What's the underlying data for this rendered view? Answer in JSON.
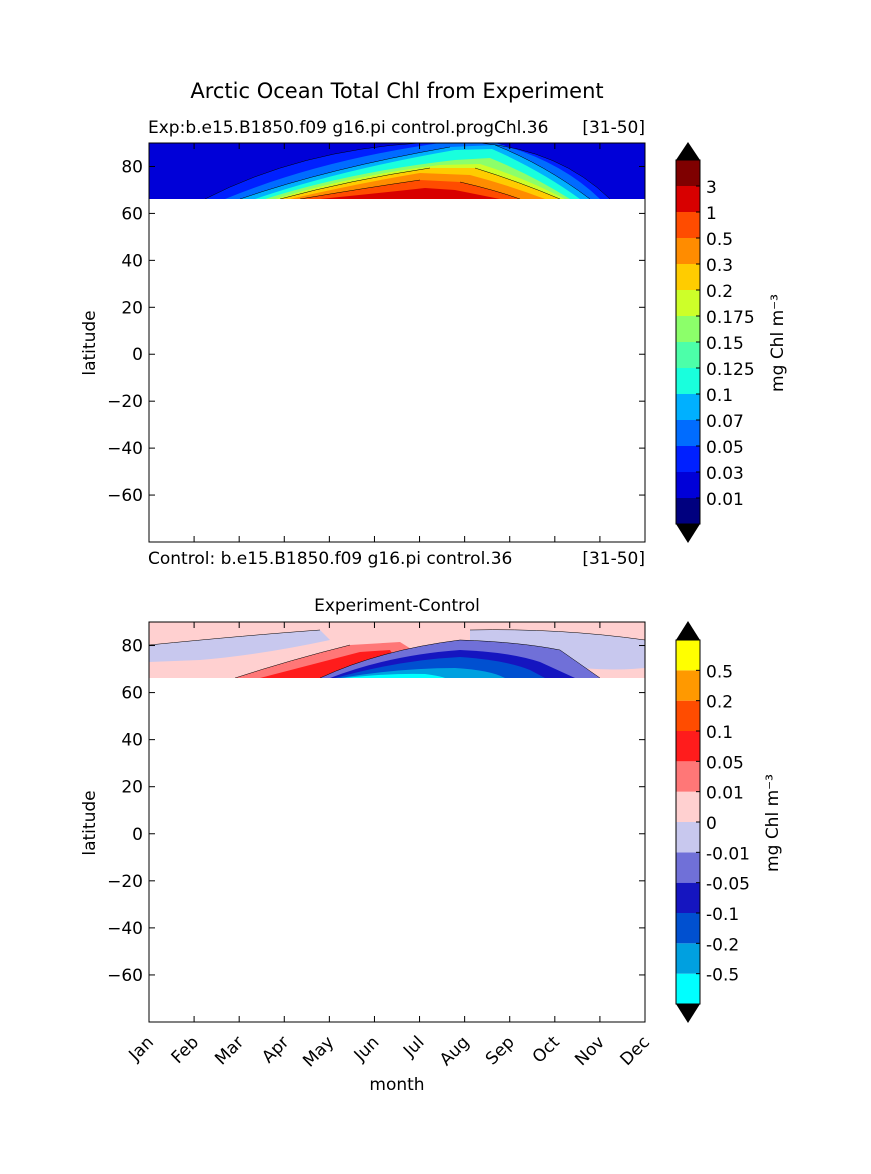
{
  "figure_title": "Arctic Ocean Total Chl from Experiment",
  "top_panel": {
    "title_left": "Exp:b.e15.B1850.f09 g16.pi control.progChl.36",
    "title_right": "[31-50]",
    "ylabel": "latitude",
    "yticks": [
      "80",
      "60",
      "40",
      "20",
      "0",
      "−20",
      "−40",
      "−60"
    ],
    "colorbar_label": "mg Chl m⁻³",
    "colorbar_levels": [
      "0.01",
      "0.03",
      "0.05",
      "0.07",
      "0.1",
      "0.125",
      "0.15",
      "0.175",
      "0.2",
      "0.3",
      "0.5",
      "1",
      "3"
    ],
    "colorbar_colors": [
      "#00007f",
      "#0000d8",
      "#0020ff",
      "#006cff",
      "#00b0ff",
      "#19ffdd",
      "#4cffa9",
      "#8cff6a",
      "#cdff29",
      "#ffcc00",
      "#ff8c00",
      "#ff4c00",
      "#d80000",
      "#7f0000"
    ]
  },
  "bottom_panel": {
    "subtitle": "Control: b.e15.B1850.f09 g16.pi control.36",
    "subtitle_right": "[31-50]",
    "title": "Experiment-Control",
    "ylabel": "latitude",
    "xlabel": "month",
    "yticks": [
      "80",
      "60",
      "40",
      "20",
      "0",
      "−20",
      "−40",
      "−60"
    ],
    "xticks": [
      "Jan",
      "Feb",
      "Mar",
      "Apr",
      "May",
      "Jun",
      "Jul",
      "Aug",
      "Sep",
      "Oct",
      "Nov",
      "Dec"
    ],
    "colorbar_label": "mg Chl m⁻³",
    "colorbar_levels": [
      "-0.5",
      "-0.2",
      "-0.1",
      "-0.05",
      "-0.01",
      "0",
      "0.01",
      "0.05",
      "0.1",
      "0.2",
      "0.5"
    ],
    "colorbar_colors": [
      "#00ffff",
      "#00a0e0",
      "#0050d0",
      "#1515c0",
      "#7070d8",
      "#c8c8ee",
      "#ffd0d0",
      "#ff7777",
      "#ff1c1c",
      "#ff4c00",
      "#ff9900",
      "#ffff00"
    ]
  },
  "chart_data": [
    {
      "type": "heatmap",
      "title": "Exp:b.e15.B1850.f09 g16.pi control.progChl.36",
      "ylabel": "latitude",
      "ylim": [
        -80,
        90
      ],
      "x": [
        "Jan",
        "Feb",
        "Mar",
        "Apr",
        "May",
        "Jun",
        "Jul",
        "Aug",
        "Sep",
        "Oct",
        "Nov",
        "Dec"
      ],
      "data_lat_range": [
        66,
        90
      ],
      "levels": [
        0.01,
        0.03,
        0.05,
        0.07,
        0.1,
        0.125,
        0.15,
        0.175,
        0.2,
        0.3,
        0.5,
        1,
        3
      ],
      "contours": [
        {
          "level": 0.1,
          "x": [
            1.6,
            3.0,
            4.5,
            6.0,
            7.5,
            8.3,
            9.2,
            9.6
          ],
          "y_top": [
            66,
            68,
            74,
            79,
            82,
            81,
            74,
            66
          ]
        },
        {
          "level": 0.3,
          "x": [
            2.9,
            4.5,
            6.0,
            7.4,
            8.2,
            8.9
          ],
          "y_top": [
            66,
            71,
            76,
            78,
            77,
            66
          ]
        },
        {
          "level": 0.5,
          "x": [
            3.1,
            4.5,
            6.0,
            7.4,
            8.1,
            8.7
          ],
          "y_top": [
            66,
            69.5,
            73.5,
            75.5,
            75,
            66
          ]
        },
        {
          "level": 1,
          "x": [
            3.3,
            4.5,
            6.0,
            7.4,
            8.0,
            8.4
          ],
          "y_top": [
            66,
            68,
            70.5,
            72.5,
            72,
            66
          ]
        }
      ],
      "colorbar_label": "mg Chl m⁻³"
    },
    {
      "type": "heatmap",
      "title": "Experiment-Control",
      "xlabel": "month",
      "ylabel": "latitude",
      "ylim": [
        -80,
        90
      ],
      "x": [
        "Jan",
        "Feb",
        "Mar",
        "Apr",
        "May",
        "Jun",
        "Jul",
        "Aug",
        "Sep",
        "Oct",
        "Nov",
        "Dec"
      ],
      "data_lat_range": [
        66,
        90
      ],
      "levels": [
        -0.5,
        -0.2,
        -0.1,
        -0.05,
        -0.01,
        0,
        0.01,
        0.05,
        0.1,
        0.2,
        0.5
      ],
      "contours": [
        {
          "level": -0.01,
          "x": [
            4.5,
            6.0,
            7.0,
            8.0,
            9.0,
            10.0
          ],
          "y_top": [
            66,
            72,
            77,
            80,
            76,
            66
          ]
        },
        {
          "level": -0.1,
          "x": [
            5.2,
            6.5,
            7.5,
            8.3,
            9.1
          ],
          "y_top": [
            66,
            72,
            75.5,
            75,
            66
          ]
        },
        {
          "level": 0.05,
          "x": [
            2.2,
            3.5,
            4.5,
            5.6,
            6.6
          ],
          "y_top": [
            66,
            73,
            77,
            78,
            66
          ]
        }
      ],
      "colorbar_label": "mg Chl m⁻³"
    }
  ]
}
